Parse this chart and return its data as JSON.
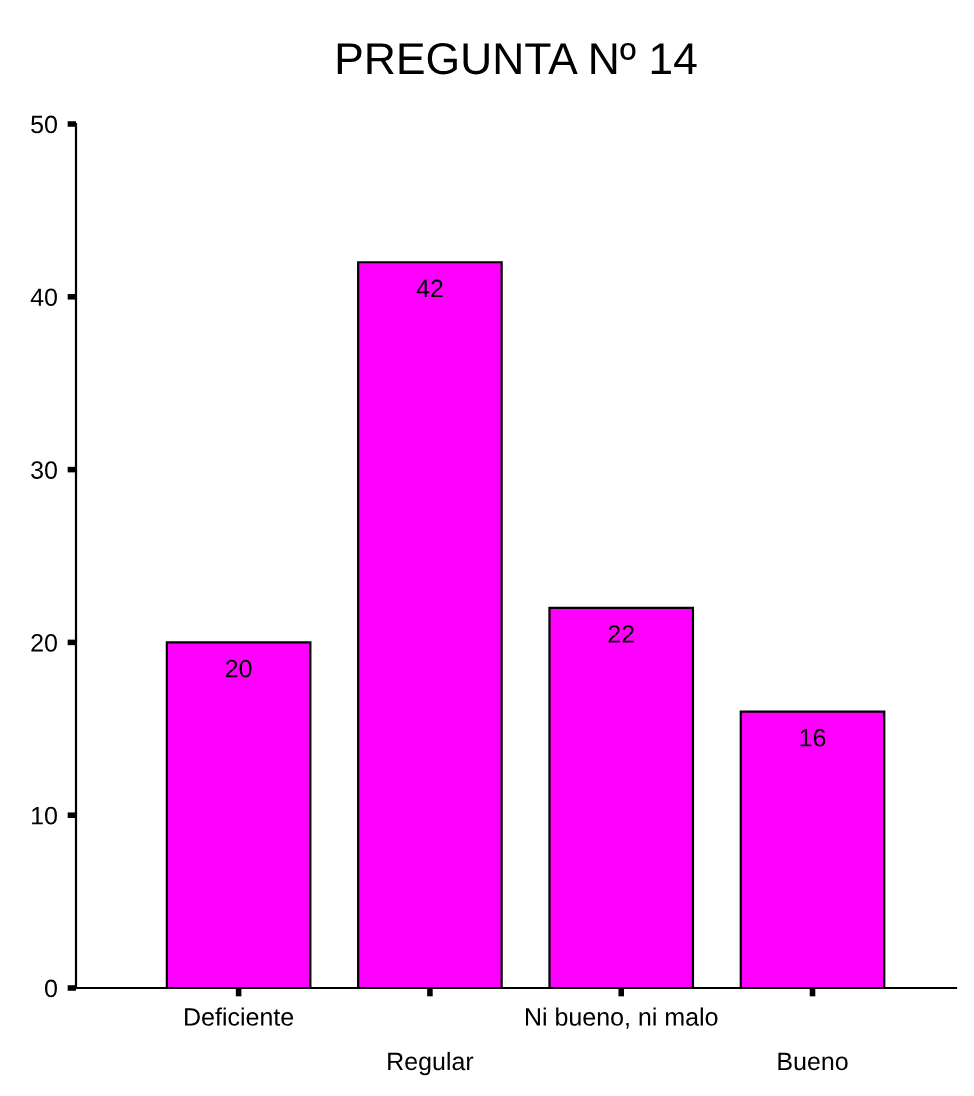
{
  "chart_data": {
    "type": "bar",
    "title": "PREGUNTA Nº 14",
    "categories": [
      "Deficiente",
      "Regular",
      "Ni bueno, ni malo",
      "Bueno"
    ],
    "values": [
      20,
      42,
      22,
      16
    ],
    "color": "#ff00ff",
    "data_labels": true,
    "ylim": [
      0,
      50
    ],
    "yticks": [
      0,
      10,
      20,
      30,
      40,
      50
    ],
    "grid": false,
    "legend": false
  }
}
